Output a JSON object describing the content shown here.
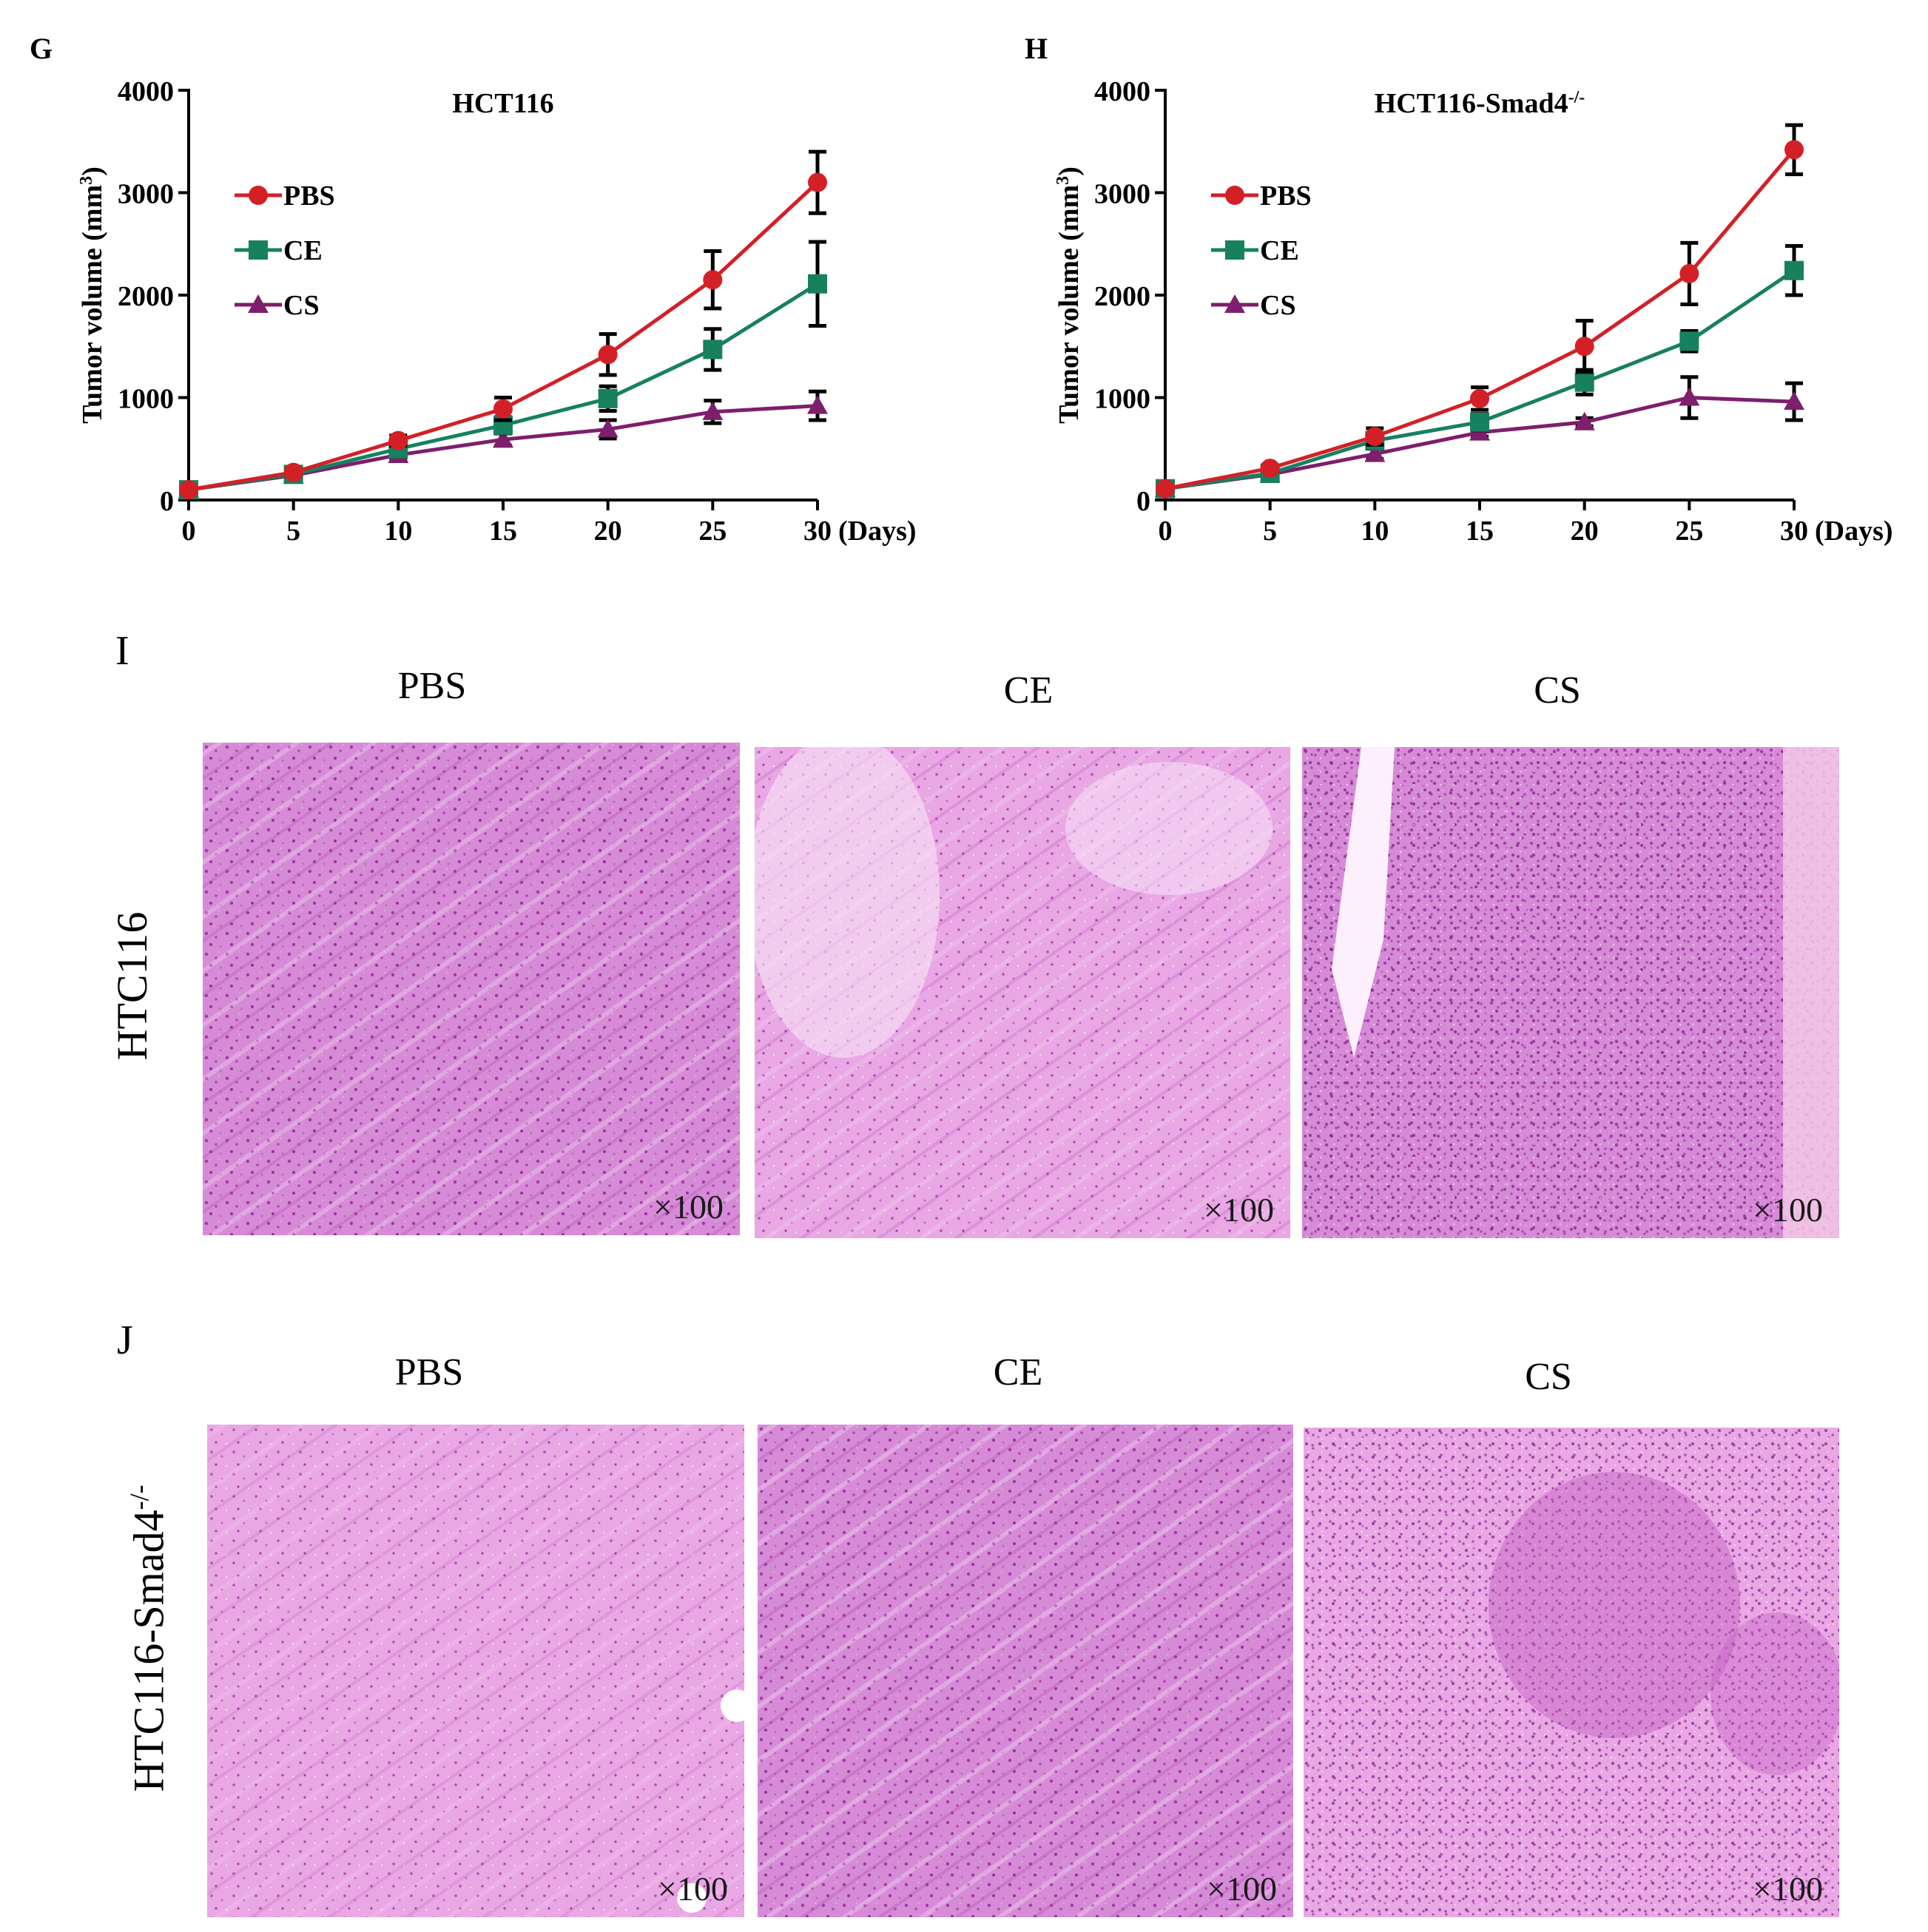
{
  "panels": {
    "G": "G",
    "H": "H",
    "I": "I",
    "J": "J"
  },
  "colors": {
    "pbs": "#d32027",
    "ce": "#17805f",
    "cs": "#7e1e6c",
    "stain_bg": "#e9a7e4",
    "stain_dark": "#a535a6",
    "stain_light": "#f5dcf4"
  },
  "chart_data": [
    {
      "type": "line",
      "title": "HCT116",
      "ylabel": "Tumor volume (mm",
      "ylabel_sup": "3",
      "ylabel_close": ")",
      "xlabel": "(Days)",
      "ylim": [
        0,
        4000
      ],
      "yticks": [
        "0",
        "1000",
        "2000",
        "3000",
        "4000"
      ],
      "ytick_values": [
        0,
        1000,
        2000,
        3000,
        4000
      ],
      "x": [
        0,
        5,
        10,
        15,
        20,
        25,
        30
      ],
      "xtick_labels": [
        "0",
        "5",
        "10",
        "15",
        "20",
        "25",
        "30"
      ],
      "legend_position": "top-left",
      "series": [
        {
          "name": "PBS",
          "marker": "circle",
          "color": "#d32027",
          "values": [
            100,
            270,
            580,
            890,
            1420,
            2150,
            3100
          ],
          "errors": [
            0,
            30,
            50,
            110,
            200,
            280,
            300
          ]
        },
        {
          "name": "CE",
          "marker": "square",
          "color": "#17805f",
          "values": [
            100,
            250,
            500,
            730,
            990,
            1470,
            2110
          ],
          "errors": [
            0,
            25,
            40,
            80,
            120,
            200,
            410
          ]
        },
        {
          "name": "CS",
          "marker": "triangle",
          "color": "#7e1e6c",
          "values": [
            100,
            240,
            440,
            590,
            690,
            860,
            920
          ],
          "errors": [
            0,
            20,
            40,
            60,
            90,
            110,
            140
          ]
        }
      ]
    },
    {
      "type": "line",
      "title": "HCT116-Smad4",
      "title_sup": "-/-",
      "ylabel": "Tumor volume (mm",
      "ylabel_sup": "3",
      "ylabel_close": ")",
      "xlabel": "(Days)",
      "ylim": [
        0,
        4000
      ],
      "yticks": [
        "0",
        "1000",
        "2000",
        "3000",
        "4000"
      ],
      "ytick_values": [
        0,
        1000,
        2000,
        3000,
        4000
      ],
      "x": [
        0,
        5,
        10,
        15,
        20,
        25,
        30
      ],
      "xtick_labels": [
        "0",
        "5",
        "10",
        "15",
        "20",
        "25",
        "30"
      ],
      "legend_position": "top-left",
      "series": [
        {
          "name": "PBS",
          "marker": "circle",
          "color": "#d32027",
          "values": [
            110,
            310,
            620,
            990,
            1500,
            2210,
            3420
          ],
          "errors": [
            0,
            30,
            80,
            110,
            250,
            300,
            240
          ]
        },
        {
          "name": "CE",
          "marker": "square",
          "color": "#17805f",
          "values": [
            110,
            260,
            580,
            760,
            1150,
            1550,
            2240
          ],
          "errors": [
            0,
            25,
            60,
            80,
            120,
            100,
            240
          ]
        },
        {
          "name": "CS",
          "marker": "triangle",
          "color": "#7e1e6c",
          "values": [
            110,
            250,
            450,
            660,
            760,
            1000,
            960
          ],
          "errors": [
            0,
            20,
            50,
            40,
            40,
            200,
            180
          ]
        }
      ]
    }
  ],
  "histology": {
    "columns": [
      "PBS",
      "CE",
      "CS"
    ],
    "rows": [
      {
        "label": "HTC116",
        "sup": ""
      },
      {
        "label": "HTC116-Smad4",
        "sup": "-/-"
      }
    ],
    "magnification": "×100"
  }
}
